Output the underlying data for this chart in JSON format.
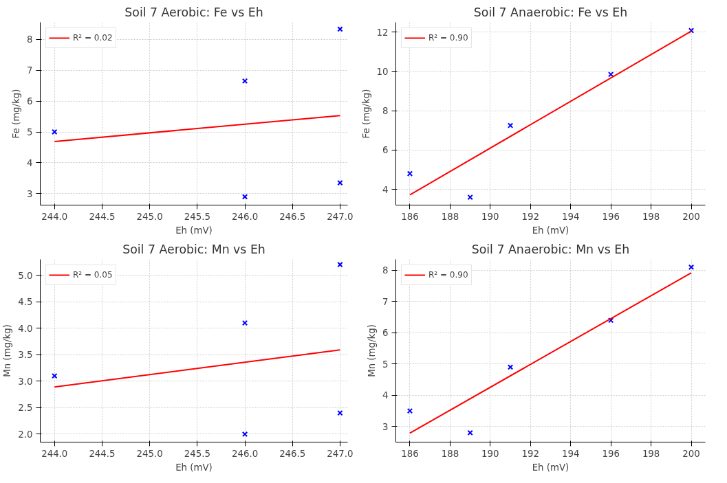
{
  "chart_data": [
    {
      "type": "scatter",
      "title": "Soil 7 Aerobic: Fe vs Eh",
      "xlabel": "Eh (mV)",
      "ylabel": "Fe (mg/kg)",
      "xlim": [
        243.85,
        247.08
      ],
      "ylim": [
        2.63,
        8.55
      ],
      "xticks": [
        {
          "value": 244,
          "label": "244.0"
        },
        244.5,
        {
          "value": 245,
          "label": "245.0"
        },
        245.5,
        {
          "value": 246,
          "label": "246.0"
        },
        246.5,
        {
          "value": 247,
          "label": "247.0"
        }
      ],
      "yticks": [
        3,
        4,
        5,
        6,
        7,
        8
      ],
      "grid": true,
      "legend": "top left",
      "series": [
        {
          "color": "#0000ff",
          "marker": "cross",
          "x": [
            244,
            246,
            246,
            247,
            247
          ],
          "values": [
            5.0,
            6.65,
            2.9,
            8.33,
            3.35
          ]
        },
        {
          "type": "line",
          "name": "R² = 0.02",
          "color": "#ff0000",
          "line_style": "solid",
          "x": [
            244,
            247
          ],
          "values": [
            4.69,
            5.53
          ]
        }
      ]
    },
    {
      "type": "scatter",
      "title": "Soil 7 Anaerobic: Fe vs Eh",
      "xlabel": "Eh (mV)",
      "ylabel": "Fe (mg/kg)",
      "xlim": [
        185.3,
        200.7
      ],
      "ylim": [
        3.2,
        12.5
      ],
      "xticks": [
        186,
        188,
        190,
        192,
        194,
        196,
        198,
        200
      ],
      "yticks": [
        4,
        6,
        8,
        10,
        12
      ],
      "grid": true,
      "legend": "top left",
      "series": [
        {
          "color": "#0000ff",
          "marker": "cross",
          "x": [
            186,
            189,
            191,
            196,
            200
          ],
          "values": [
            4.8,
            3.6,
            7.25,
            9.85,
            12.08
          ]
        },
        {
          "type": "line",
          "name": "R² = 0.90",
          "color": "#ff0000",
          "line_style": "solid",
          "x": [
            186,
            200
          ],
          "values": [
            3.72,
            12.05
          ]
        }
      ]
    },
    {
      "type": "scatter",
      "title": "Soil 7 Aerobic: Mn vs Eh",
      "xlabel": "Eh (mV)",
      "ylabel": "Mn (mg/kg)",
      "xlim": [
        243.85,
        247.08
      ],
      "ylim": [
        1.85,
        5.3
      ],
      "xticks": [
        {
          "value": 244,
          "label": "244.0"
        },
        244.5,
        {
          "value": 245,
          "label": "245.0"
        },
        245.5,
        {
          "value": 246,
          "label": "246.0"
        },
        246.5,
        {
          "value": 247,
          "label": "247.0"
        }
      ],
      "yticks": [
        {
          "value": 2,
          "label": "2.0"
        },
        2.5,
        {
          "value": 3,
          "label": "3.0"
        },
        3.5,
        {
          "value": 4,
          "label": "4.0"
        },
        4.5,
        {
          "value": 5,
          "label": "5.0"
        }
      ],
      "grid": true,
      "legend": "top left",
      "series": [
        {
          "color": "#0000ff",
          "marker": "cross",
          "x": [
            244,
            246,
            246,
            247,
            247
          ],
          "values": [
            3.1,
            4.1,
            2.0,
            5.2,
            2.4
          ]
        },
        {
          "type": "line",
          "name": "R² = 0.05",
          "color": "#ff0000",
          "line_style": "solid",
          "x": [
            244,
            247
          ],
          "values": [
            2.89,
            3.59
          ]
        }
      ]
    },
    {
      "type": "scatter",
      "title": "Soil 7 Anaerobic: Mn vs Eh",
      "xlabel": "Eh (mV)",
      "ylabel": "Mn (mg/kg)",
      "xlim": [
        185.3,
        200.7
      ],
      "ylim": [
        2.5,
        8.35
      ],
      "xticks": [
        186,
        188,
        190,
        192,
        194,
        196,
        198,
        200
      ],
      "yticks": [
        3,
        4,
        5,
        6,
        7,
        8
      ],
      "grid": true,
      "legend": "top left",
      "series": [
        {
          "color": "#0000ff",
          "marker": "cross",
          "x": [
            186,
            189,
            191,
            196,
            200
          ],
          "values": [
            3.5,
            2.8,
            4.9,
            6.4,
            8.1
          ]
        },
        {
          "type": "line",
          "name": "R² = 0.90",
          "color": "#ff0000",
          "line_style": "solid",
          "x": [
            186,
            200
          ],
          "values": [
            2.79,
            7.92
          ]
        }
      ]
    }
  ]
}
